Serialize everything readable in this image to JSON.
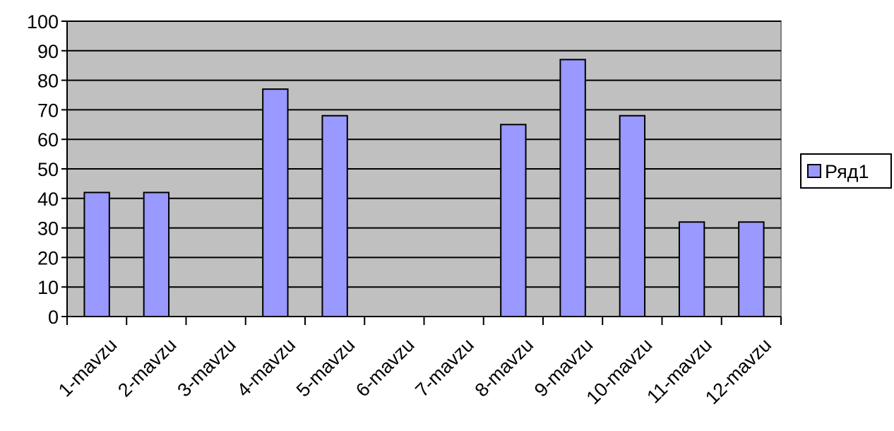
{
  "chart_data": {
    "type": "bar",
    "categories": [
      "1-mavzu",
      "2-mavzu",
      "3-mavzu",
      "4-mavzu",
      "5-mavzu",
      "6-mavzu",
      "7-mavzu",
      "8-mavzu",
      "9-mavzu",
      "10-mavzu",
      "11-mavzu",
      "12-mavzu"
    ],
    "series": [
      {
        "name": "Ряд1",
        "values": [
          42,
          42,
          0,
          77,
          68,
          0,
          0,
          65,
          87,
          68,
          32,
          32
        ],
        "color": "#9999ff"
      }
    ],
    "yticks": [
      "0",
      "10",
      "20",
      "30",
      "40",
      "50",
      "60",
      "70",
      "80",
      "90",
      "100"
    ],
    "ylim": [
      0,
      100
    ],
    "grid": true,
    "legend_position": "right",
    "plot_background": "#c0c0c0"
  }
}
